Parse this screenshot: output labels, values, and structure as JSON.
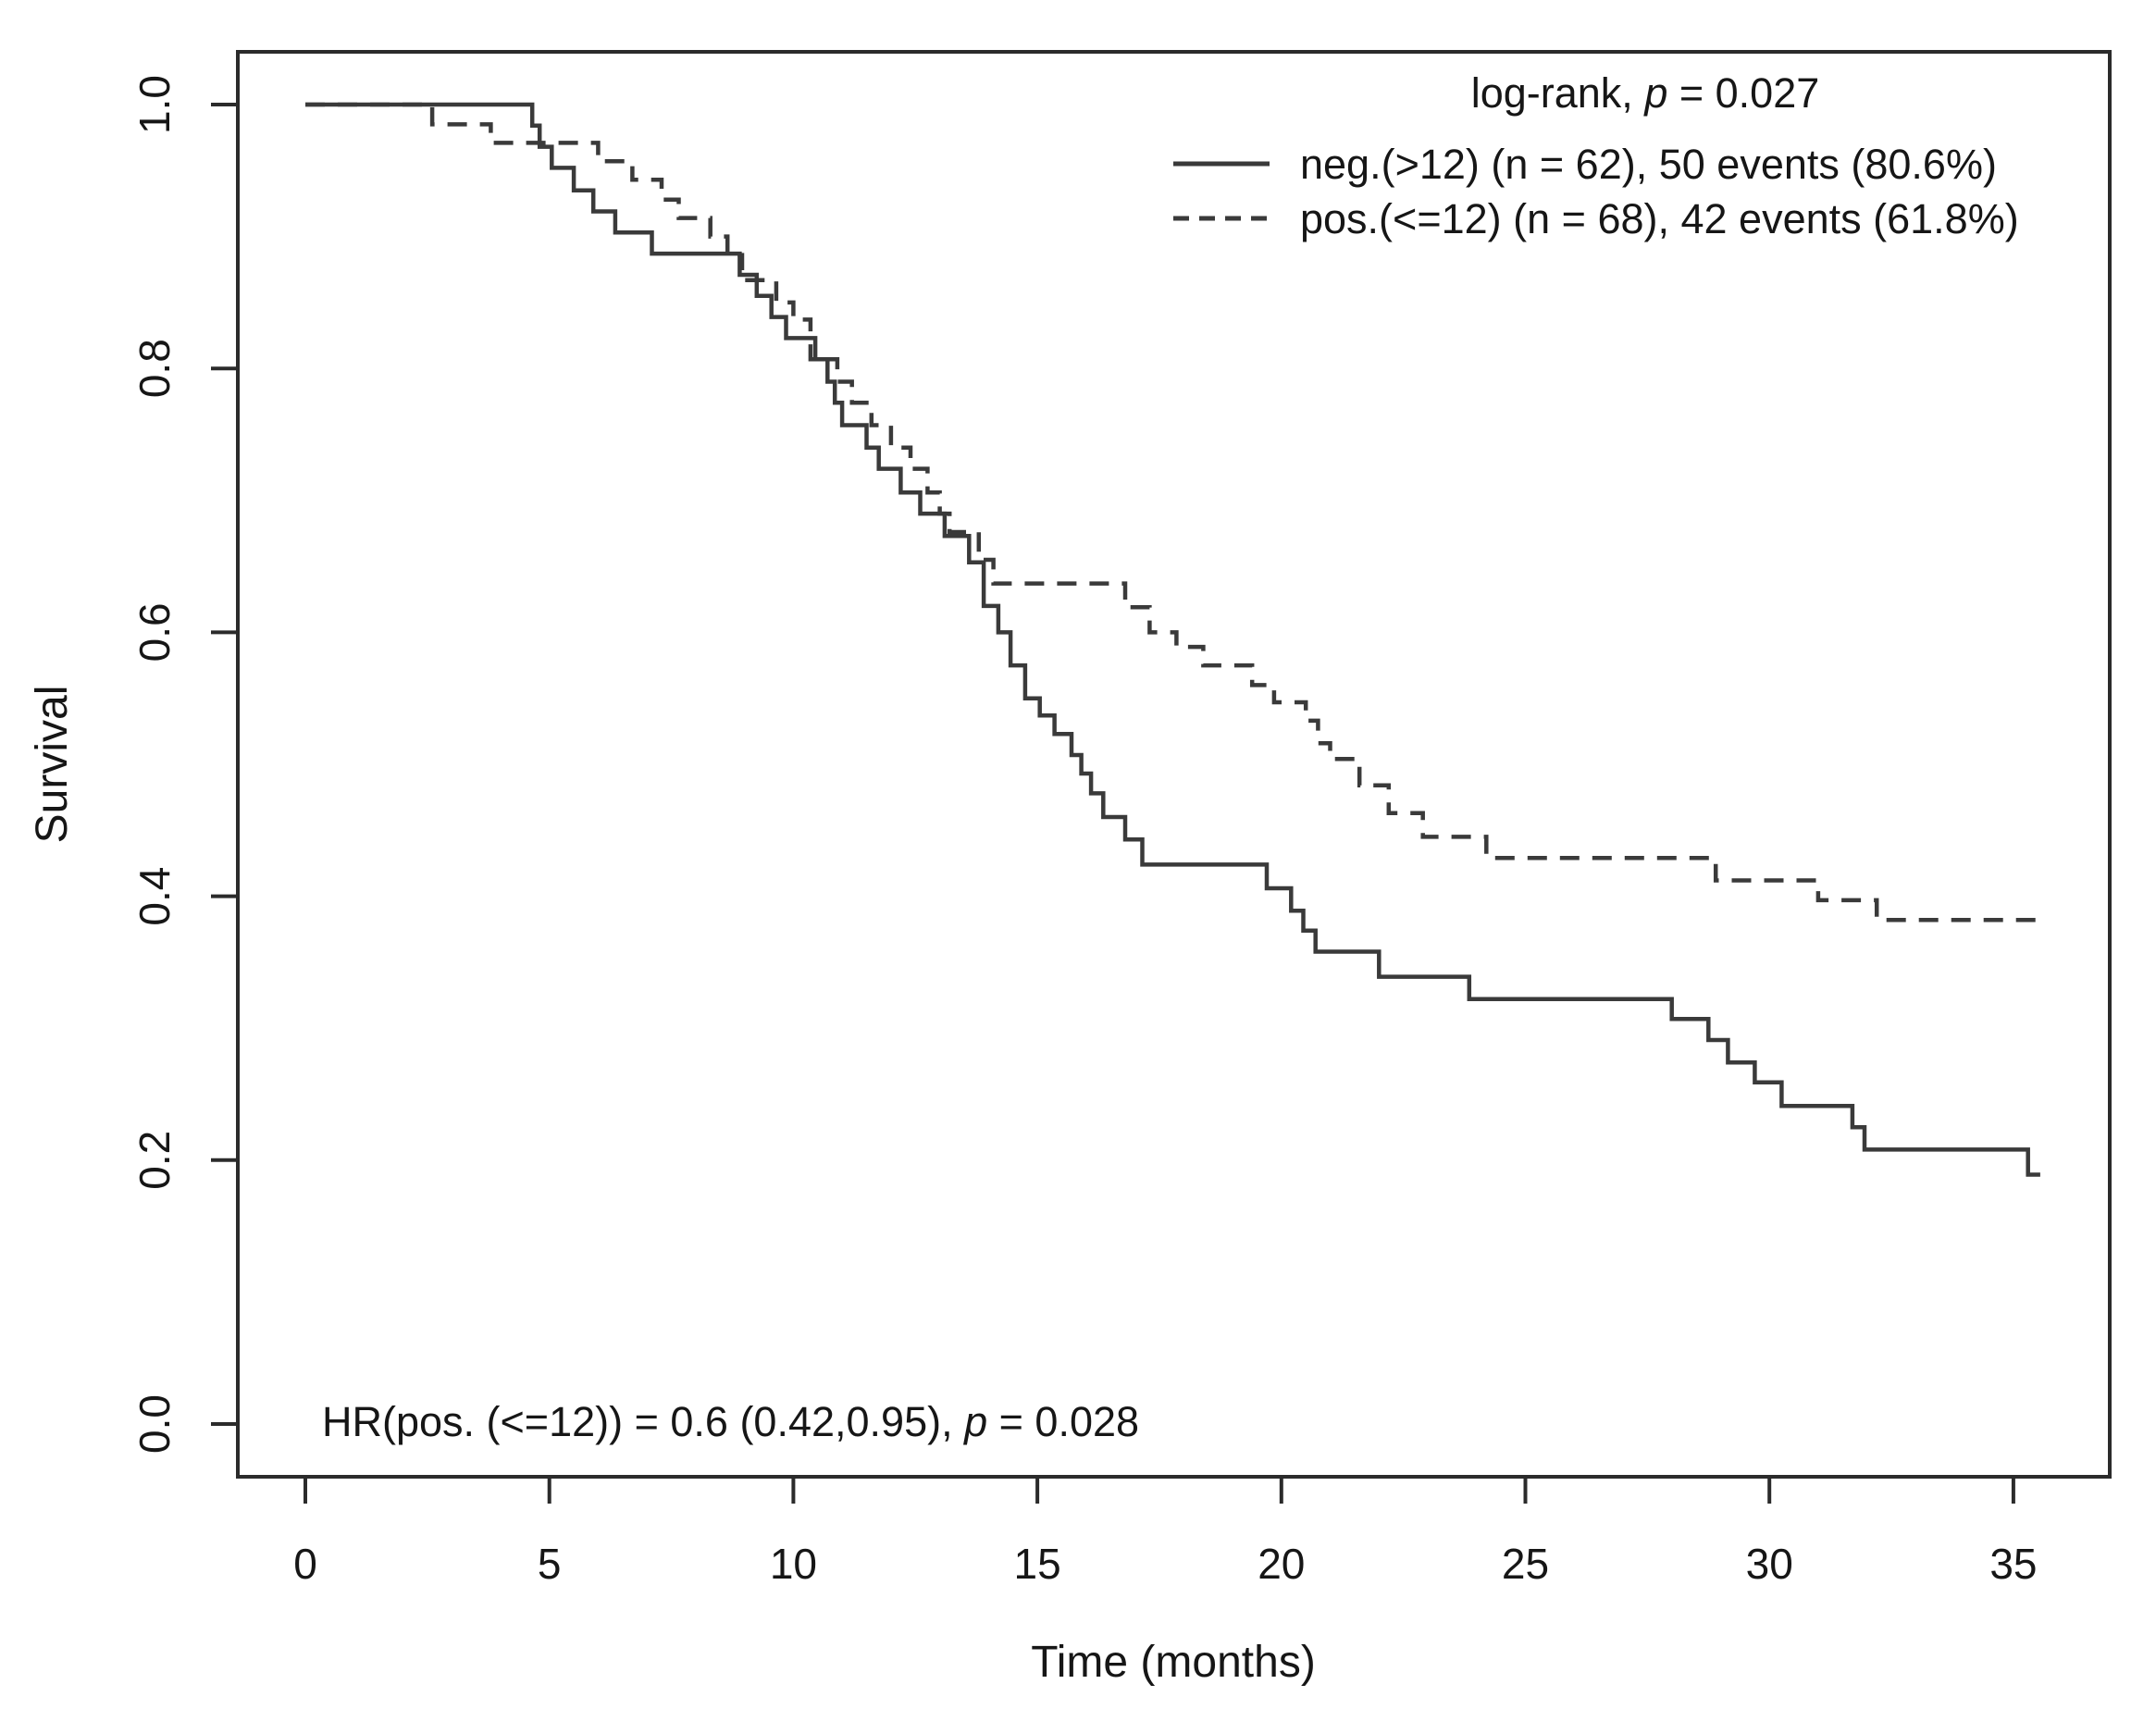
{
  "figure": {
    "background": "#ffffff",
    "curve_color": "#3a3a3a",
    "frame_color": "#2b2b2b",
    "text_color": "#161616"
  },
  "chart_data": {
    "type": "line",
    "subtype": "kaplan-meier-step",
    "title": "",
    "xlabel": "Time (months)",
    "ylabel": "Survival",
    "grid": false,
    "legend_position": "top-right",
    "xlim": [
      0,
      36
    ],
    "ylim": [
      0.0,
      1.0
    ],
    "x_ticks": {
      "values": [
        0,
        5,
        10,
        15,
        20,
        25,
        30,
        35
      ],
      "labels": [
        "0",
        "5",
        "10",
        "15",
        "20",
        "25",
        "30",
        "35"
      ]
    },
    "y_ticks": {
      "values": [
        0.0,
        0.2,
        0.4,
        0.6,
        0.8,
        1.0
      ],
      "labels": [
        "0.0",
        "0.2",
        "0.4",
        "0.6",
        "0.8",
        "1.0"
      ]
    },
    "stats": {
      "logrank": {
        "full": "log-rank, p = 0.027",
        "prefix": "log-rank, ",
        "p_label": "p",
        "suffix": " = 0.027",
        "p_value": 0.027
      },
      "hazard_ratio": {
        "full": "HR(pos. (<=12)) = 0.6 (0.42,0.95), p = 0.028",
        "prefix": "HR(pos. (<=12)) = 0.6 (0.42,0.95), ",
        "p_label": "p",
        "suffix": " = 0.028",
        "hr": 0.6,
        "ci": "(0.42,0.95)",
        "p_value": 0.028
      }
    },
    "series": [
      {
        "name": "neg.(>12) (n = 62), 50 events (80.6%)",
        "group": "neg.(>12)",
        "n": 62,
        "events": 50,
        "events_pct": "80.6%",
        "line_style": "solid",
        "start": [
          0,
          1.0
        ],
        "end_time": 35.55,
        "drops": [
          [
            4.65,
            0.984
          ],
          [
            4.8,
            0.968
          ],
          [
            5.05,
            0.952
          ],
          [
            5.5,
            0.935
          ],
          [
            5.9,
            0.919
          ],
          [
            6.35,
            0.903
          ],
          [
            7.1,
            0.887
          ],
          [
            8.9,
            0.871
          ],
          [
            9.25,
            0.855
          ],
          [
            9.55,
            0.839
          ],
          [
            9.85,
            0.823
          ],
          [
            10.45,
            0.807
          ],
          [
            10.7,
            0.79
          ],
          [
            10.85,
            0.774
          ],
          [
            11.0,
            0.757
          ],
          [
            11.5,
            0.74
          ],
          [
            11.75,
            0.724
          ],
          [
            12.2,
            0.706
          ],
          [
            12.6,
            0.69
          ],
          [
            13.1,
            0.673
          ],
          [
            13.6,
            0.653
          ],
          [
            13.9,
            0.62
          ],
          [
            14.2,
            0.6
          ],
          [
            14.45,
            0.575
          ],
          [
            14.75,
            0.55
          ],
          [
            15.05,
            0.537
          ],
          [
            15.35,
            0.523
          ],
          [
            15.7,
            0.507
          ],
          [
            15.9,
            0.493
          ],
          [
            16.1,
            0.478
          ],
          [
            16.35,
            0.46
          ],
          [
            16.8,
            0.443
          ],
          [
            17.15,
            0.424
          ],
          [
            19.7,
            0.406
          ],
          [
            20.2,
            0.389
          ],
          [
            20.45,
            0.374
          ],
          [
            20.7,
            0.358
          ],
          [
            22.0,
            0.339
          ],
          [
            23.85,
            0.322
          ],
          [
            28.0,
            0.307
          ],
          [
            28.75,
            0.291
          ],
          [
            29.15,
            0.274
          ],
          [
            29.7,
            0.259
          ],
          [
            30.25,
            0.241
          ],
          [
            31.7,
            0.225
          ],
          [
            31.95,
            0.208
          ],
          [
            35.3,
            0.189
          ]
        ]
      },
      {
        "name": "pos.(<=12) (n = 68), 42 events (61.8%)",
        "group": "pos.(<=12)",
        "n": 68,
        "events": 42,
        "events_pct": "61.8%",
        "line_style": "dashed",
        "start": [
          0,
          1.0
        ],
        "end_time": 35.6,
        "drops": [
          [
            2.6,
            0.985
          ],
          [
            3.8,
            0.971
          ],
          [
            6.0,
            0.957
          ],
          [
            6.7,
            0.943
          ],
          [
            7.3,
            0.928
          ],
          [
            7.65,
            0.914
          ],
          [
            8.3,
            0.9
          ],
          [
            8.65,
            0.886
          ],
          [
            8.95,
            0.867
          ],
          [
            9.65,
            0.85
          ],
          [
            10.0,
            0.837
          ],
          [
            10.35,
            0.807
          ],
          [
            10.9,
            0.79
          ],
          [
            11.2,
            0.774
          ],
          [
            11.6,
            0.757
          ],
          [
            12.0,
            0.74
          ],
          [
            12.4,
            0.724
          ],
          [
            12.75,
            0.706
          ],
          [
            13.0,
            0.69
          ],
          [
            13.2,
            0.676
          ],
          [
            13.8,
            0.655
          ],
          [
            14.1,
            0.637
          ],
          [
            16.8,
            0.619
          ],
          [
            17.3,
            0.6
          ],
          [
            17.85,
            0.589
          ],
          [
            18.4,
            0.575
          ],
          [
            19.4,
            0.56
          ],
          [
            19.85,
            0.547
          ],
          [
            20.5,
            0.533
          ],
          [
            20.75,
            0.516
          ],
          [
            21.0,
            0.504
          ],
          [
            21.6,
            0.484
          ],
          [
            22.2,
            0.463
          ],
          [
            22.9,
            0.445
          ],
          [
            24.2,
            0.429
          ],
          [
            28.9,
            0.412
          ],
          [
            31.0,
            0.397
          ],
          [
            32.2,
            0.382
          ]
        ]
      }
    ]
  }
}
